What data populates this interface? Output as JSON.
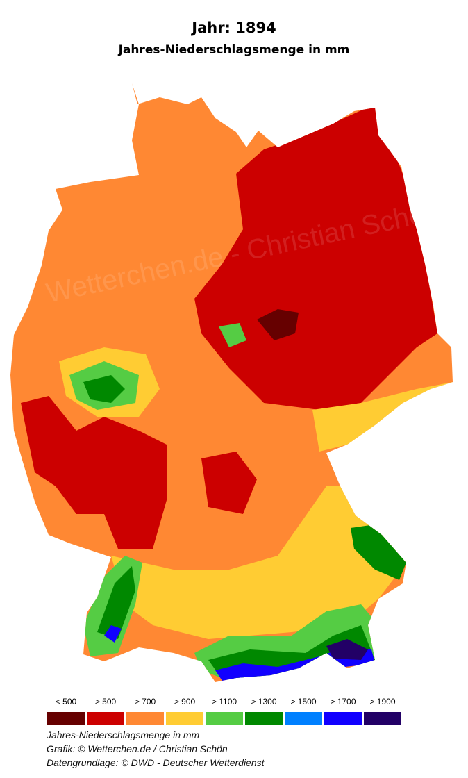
{
  "title": "Jahr: 1894",
  "subtitle": "Jahres-Niederschlagsmenge in mm",
  "watermark": "Wetterchen.de - Christian Schön",
  "legend": [
    {
      "label": "< 500",
      "color": "#660000"
    },
    {
      "label": "> 500",
      "color": "#cc0000"
    },
    {
      "label": "> 700",
      "color": "#ff8833"
    },
    {
      "label": "> 900",
      "color": "#ffcc33"
    },
    {
      "label": "> 1100",
      "color": "#55cc44"
    },
    {
      "label": "> 1300",
      "color": "#008800"
    },
    {
      "label": "> 1500",
      "color": "#0080ff"
    },
    {
      "label": "> 1700",
      "color": "#1100ff"
    },
    {
      "label": "> 1900",
      "color": "#220066"
    }
  ],
  "footer": {
    "line1": "Jahres-Niederschlagsmenge in mm",
    "line2": "Grafik: © Wetterchen.de / Christian Schön",
    "line3": "Datengrundlage: © DWD - Deutscher Wetterdienst"
  }
}
